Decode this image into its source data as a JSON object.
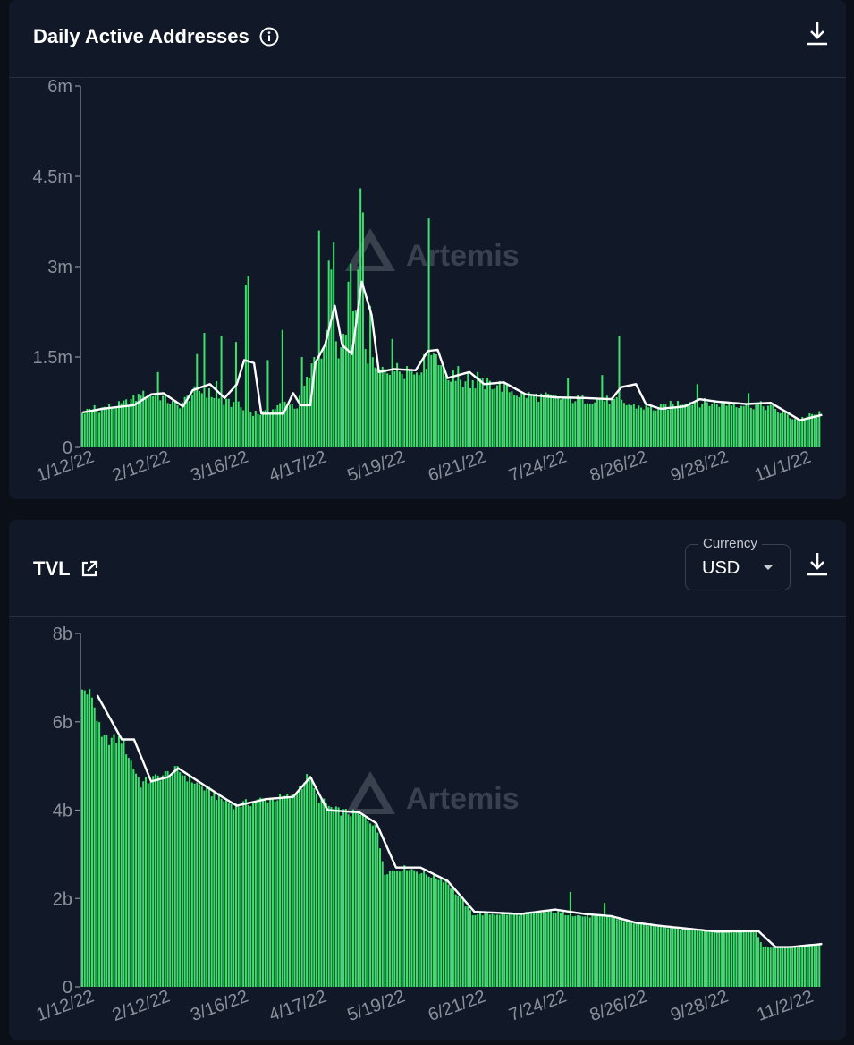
{
  "colors": {
    "bar": "#3ce06a",
    "ma_line": "#ffffff",
    "axis": "#8a909b",
    "background": "#111827"
  },
  "watermark": "Artemis",
  "cards": [
    {
      "title": "Daily Active Addresses",
      "title_icon": "info-icon",
      "download_icon": "download-icon"
    },
    {
      "title": "TVL",
      "title_icon": "external-link-icon",
      "download_icon": "download-icon",
      "currency": {
        "label": "Currency",
        "value": "USD"
      }
    }
  ],
  "chart_data": [
    {
      "type": "bar",
      "title": "Daily Active Addresses",
      "y_ticks": [
        "0",
        "1.5m",
        "3m",
        "4.5m",
        "6m"
      ],
      "ylim": [
        0,
        6000000
      ],
      "x_ticks": [
        "1/12/22",
        "2/12/22",
        "3/16/22",
        "4/17/22",
        "5/19/22",
        "6/21/22",
        "7/24/22",
        "8/26/22",
        "9/28/22",
        "11/1/22"
      ],
      "x_range": [
        "1/12/22",
        "11/10/22"
      ],
      "grid": false,
      "anchors_bars": [
        [
          "1/12/22",
          580000
        ],
        [
          "1/20/22",
          650000
        ],
        [
          "1/28/22",
          700000
        ],
        [
          "2/5/22",
          860000
        ],
        [
          "2/12/22",
          880000
        ],
        [
          "2/20/22",
          680000
        ],
        [
          "2/28/22",
          950000
        ],
        [
          "3/5/22",
          900000
        ],
        [
          "3/11/22",
          740000
        ],
        [
          "3/16/22",
          720000
        ],
        [
          "3/20/22",
          600000
        ],
        [
          "3/28/22",
          560000
        ],
        [
          "4/5/22",
          740000
        ],
        [
          "4/10/22",
          680000
        ],
        [
          "4/17/22",
          1400000
        ],
        [
          "4/22/22",
          1800000
        ],
        [
          "4/28/22",
          1600000
        ],
        [
          "5/3/22",
          2200000
        ],
        [
          "5/8/22",
          1500000
        ],
        [
          "5/13/22",
          1250000
        ],
        [
          "5/19/22",
          1300000
        ],
        [
          "5/28/22",
          1250000
        ],
        [
          "6/6/22",
          1600000
        ],
        [
          "6/10/22",
          1200000
        ],
        [
          "6/21/22",
          1050000
        ],
        [
          "7/1/22",
          1050000
        ],
        [
          "7/10/22",
          880000
        ],
        [
          "7/24/22",
          820000
        ],
        [
          "8/5/22",
          800000
        ],
        [
          "8/16/22",
          780000
        ],
        [
          "8/26/22",
          690000
        ],
        [
          "9/5/22",
          640000
        ],
        [
          "9/15/22",
          760000
        ],
        [
          "9/28/22",
          730000
        ],
        [
          "10/10/22",
          720000
        ],
        [
          "10/20/22",
          680000
        ],
        [
          "11/1/22",
          460000
        ],
        [
          "11/10/22",
          560000
        ]
      ],
      "spikes": [
        [
          "1/17/22",
          700000
        ],
        [
          "2/5/22",
          860000
        ],
        [
          "2/12/22",
          1250000
        ],
        [
          "2/28/22",
          1550000
        ],
        [
          "3/3/22",
          1900000
        ],
        [
          "3/8/22",
          1100000
        ],
        [
          "3/10/22",
          1850000
        ],
        [
          "3/16/22",
          1750000
        ],
        [
          "3/20/22",
          2700000
        ],
        [
          "3/21/22",
          2850000
        ],
        [
          "3/29/22",
          1450000
        ],
        [
          "4/4/22",
          1950000
        ],
        [
          "4/12/22",
          1500000
        ],
        [
          "4/17/22",
          1500000
        ],
        [
          "4/19/22",
          3600000
        ],
        [
          "4/23/22",
          3100000
        ],
        [
          "4/24/22",
          2950000
        ],
        [
          "4/25/22",
          3400000
        ],
        [
          "5/1/22",
          2750000
        ],
        [
          "5/2/22",
          3050000
        ],
        [
          "5/5/22",
          2950000
        ],
        [
          "5/6/22",
          4300000
        ],
        [
          "5/7/22",
          3900000
        ],
        [
          "5/10/22",
          2350000
        ],
        [
          "5/19/22",
          1800000
        ],
        [
          "5/25/22",
          1350000
        ],
        [
          "6/3/22",
          3800000
        ],
        [
          "6/9/22",
          1350000
        ],
        [
          "6/15/22",
          1350000
        ],
        [
          "6/19/22",
          1250000
        ],
        [
          "6/23/22",
          1250000
        ],
        [
          "7/30/22",
          1150000
        ],
        [
          "8/13/22",
          1200000
        ],
        [
          "8/20/22",
          1850000
        ],
        [
          "9/21/22",
          1050000
        ],
        [
          "10/12/22",
          900000
        ]
      ],
      "anchors_ma": [
        [
          "1/12/22",
          580000
        ],
        [
          "1/20/22",
          640000
        ],
        [
          "2/2/22",
          700000
        ],
        [
          "2/9/22",
          880000
        ],
        [
          "2/14/22",
          900000
        ],
        [
          "2/22/22",
          680000
        ],
        [
          "2/26/22",
          950000
        ],
        [
          "3/5/22",
          1050000
        ],
        [
          "3/11/22",
          820000
        ],
        [
          "3/16/22",
          1050000
        ],
        [
          "3/19/22",
          1450000
        ],
        [
          "3/23/22",
          1400000
        ],
        [
          "3/26/22",
          560000
        ],
        [
          "4/4/22",
          560000
        ],
        [
          "4/8/22",
          900000
        ],
        [
          "4/11/22",
          700000
        ],
        [
          "4/15/22",
          700000
        ],
        [
          "4/17/22",
          1400000
        ],
        [
          "4/21/22",
          1700000
        ],
        [
          "4/25/22",
          2350000
        ],
        [
          "4/28/22",
          1700000
        ],
        [
          "5/2/22",
          1550000
        ],
        [
          "5/6/22",
          2750000
        ],
        [
          "5/10/22",
          2200000
        ],
        [
          "5/13/22",
          1250000
        ],
        [
          "5/19/22",
          1300000
        ],
        [
          "5/28/22",
          1280000
        ],
        [
          "6/2/22",
          1600000
        ],
        [
          "6/6/22",
          1620000
        ],
        [
          "6/10/22",
          1150000
        ],
        [
          "6/19/22",
          1250000
        ],
        [
          "6/25/22",
          1050000
        ],
        [
          "7/3/22",
          1080000
        ],
        [
          "7/12/22",
          880000
        ],
        [
          "7/24/22",
          830000
        ],
        [
          "8/5/22",
          820000
        ],
        [
          "8/16/22",
          800000
        ],
        [
          "8/20/22",
          1000000
        ],
        [
          "8/26/22",
          1050000
        ],
        [
          "8/30/22",
          720000
        ],
        [
          "9/5/22",
          640000
        ],
        [
          "9/15/22",
          680000
        ],
        [
          "9/21/22",
          800000
        ],
        [
          "9/28/22",
          760000
        ],
        [
          "10/10/22",
          720000
        ],
        [
          "10/20/22",
          740000
        ],
        [
          "11/1/22",
          450000
        ],
        [
          "11/10/22",
          540000
        ]
      ]
    },
    {
      "type": "bar",
      "title": "TVL",
      "y_ticks": [
        "0",
        "2b",
        "4b",
        "6b",
        "8b"
      ],
      "ylim": [
        0,
        8000000000
      ],
      "x_ticks": [
        "1/12/22",
        "2/12/22",
        "3/16/22",
        "4/17/22",
        "5/19/22",
        "6/21/22",
        "7/24/22",
        "8/26/22",
        "9/28/22",
        "11/2/22"
      ],
      "x_range": [
        "1/12/22",
        "11/10/22"
      ],
      "grid": false,
      "anchors_bars": [
        [
          "1/12/22",
          6700000000
        ],
        [
          "1/16/22",
          6600000000
        ],
        [
          "1/20/22",
          5600000000
        ],
        [
          "1/28/22",
          5600000000
        ],
        [
          "2/5/22",
          4600000000
        ],
        [
          "2/12/22",
          4750000000
        ],
        [
          "2/20/22",
          4900000000
        ],
        [
          "2/28/22",
          4600000000
        ],
        [
          "3/10/22",
          4250000000
        ],
        [
          "3/16/22",
          4100000000
        ],
        [
          "3/28/22",
          4250000000
        ],
        [
          "4/8/22",
          4300000000
        ],
        [
          "4/15/22",
          4800000000
        ],
        [
          "4/18/22",
          4300000000
        ],
        [
          "4/25/22",
          4000000000
        ],
        [
          "5/5/22",
          3900000000
        ],
        [
          "5/12/22",
          3700000000
        ],
        [
          "5/16/22",
          2600000000
        ],
        [
          "5/25/22",
          2700000000
        ],
        [
          "6/10/22",
          2400000000
        ],
        [
          "6/21/22",
          1650000000
        ],
        [
          "7/10/22",
          1650000000
        ],
        [
          "7/24/22",
          1700000000
        ],
        [
          "8/5/22",
          1600000000
        ],
        [
          "8/16/22",
          1600000000
        ],
        [
          "8/26/22",
          1450000000
        ],
        [
          "9/5/22",
          1380000000
        ],
        [
          "9/28/22",
          1250000000
        ],
        [
          "10/15/22",
          1260000000
        ],
        [
          "10/18/22",
          900000000
        ],
        [
          "10/28/22",
          900000000
        ],
        [
          "11/10/22",
          970000000
        ]
      ],
      "spikes": [
        [
          "7/31/22",
          2150000000
        ],
        [
          "8/14/22",
          1900000000
        ]
      ],
      "anchors_ma": [
        [
          "1/18/22",
          6600000000
        ],
        [
          "1/28/22",
          5600000000
        ],
        [
          "2/2/22",
          5600000000
        ],
        [
          "2/9/22",
          4650000000
        ],
        [
          "2/16/22",
          4750000000
        ],
        [
          "2/20/22",
          4950000000
        ],
        [
          "3/10/22",
          4300000000
        ],
        [
          "3/16/22",
          4100000000
        ],
        [
          "3/28/22",
          4250000000
        ],
        [
          "4/8/22",
          4300000000
        ],
        [
          "4/15/22",
          4750000000
        ],
        [
          "4/22/22",
          4000000000
        ],
        [
          "5/5/22",
          3950000000
        ],
        [
          "5/12/22",
          3700000000
        ],
        [
          "5/20/22",
          2700000000
        ],
        [
          "5/30/22",
          2700000000
        ],
        [
          "6/10/22",
          2400000000
        ],
        [
          "6/21/22",
          1700000000
        ],
        [
          "7/10/22",
          1650000000
        ],
        [
          "7/24/22",
          1750000000
        ],
        [
          "8/5/22",
          1650000000
        ],
        [
          "8/16/22",
          1600000000
        ],
        [
          "8/26/22",
          1450000000
        ],
        [
          "9/5/22",
          1380000000
        ],
        [
          "9/28/22",
          1250000000
        ],
        [
          "10/15/22",
          1260000000
        ],
        [
          "10/22/22",
          900000000
        ],
        [
          "10/28/22",
          900000000
        ],
        [
          "11/10/22",
          970000000
        ]
      ]
    }
  ]
}
